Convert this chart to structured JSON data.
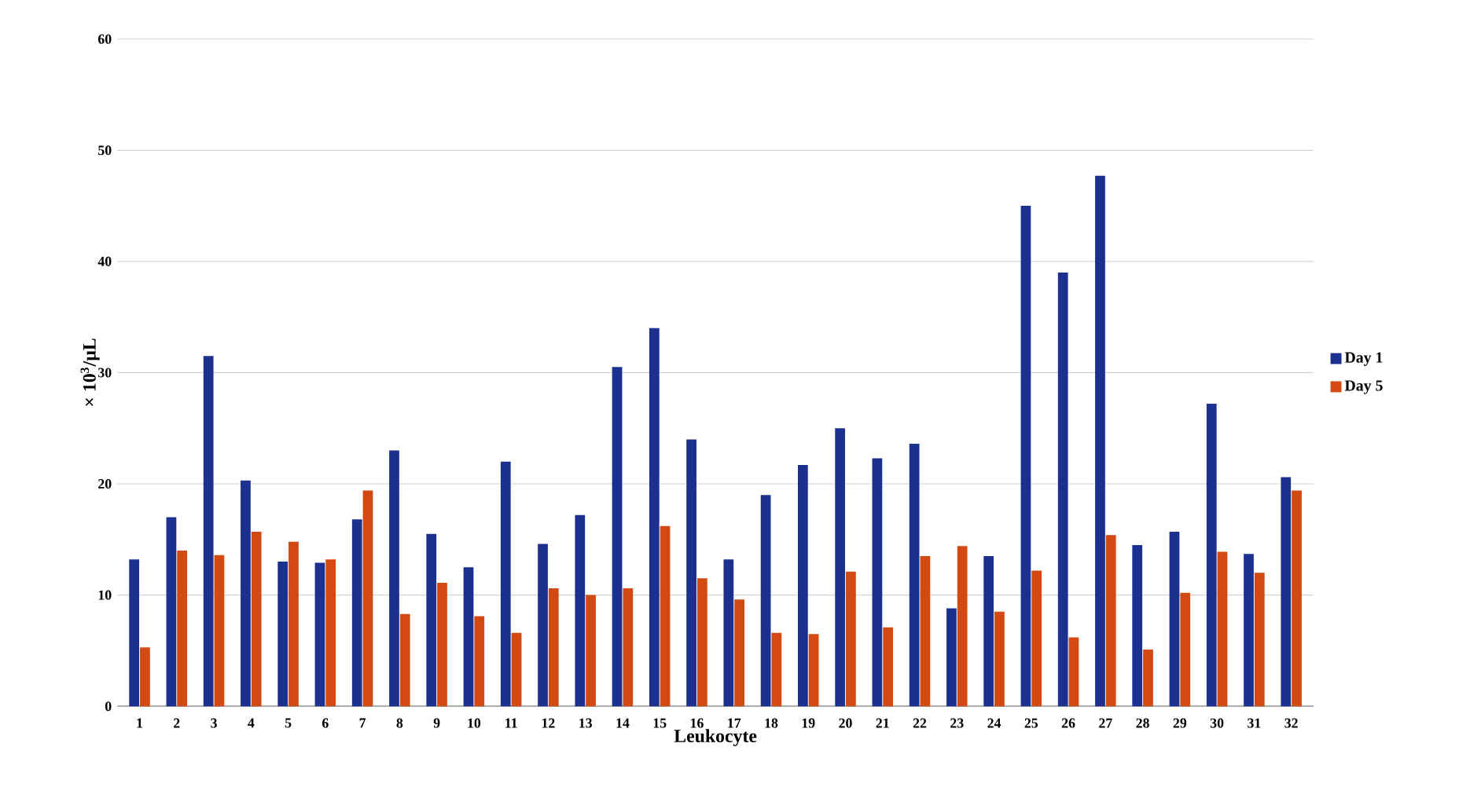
{
  "chart_data": {
    "type": "bar",
    "xlabel": "Leukocyte",
    "ylabel": "× 10$^{3}$/µL",
    "categories": [
      "1",
      "2",
      "3",
      "4",
      "5",
      "6",
      "7",
      "8",
      "9",
      "10",
      "11",
      "12",
      "13",
      "14",
      "15",
      "16",
      "17",
      "18",
      "19",
      "20",
      "21",
      "22",
      "23",
      "24",
      "25",
      "26",
      "27",
      "28",
      "29",
      "30",
      "31",
      "32"
    ],
    "series": [
      {
        "name": "Day 1",
        "color": "#1c318f",
        "values": [
          13.2,
          17,
          31.5,
          20.3,
          13,
          12.9,
          16.8,
          23,
          15.5,
          12.5,
          22,
          14.6,
          17.2,
          30.5,
          34,
          24,
          13.2,
          19,
          21.7,
          25,
          22.3,
          23.6,
          8.8,
          13.5,
          45,
          39,
          47.7,
          14.5,
          15.7,
          27.2,
          13.7,
          20.6
        ]
      },
      {
        "name": "Day 5",
        "color": "#d24a12",
        "values": [
          5.3,
          14,
          13.6,
          15.7,
          14.8,
          13.2,
          19.4,
          8.3,
          11.1,
          8.1,
          6.6,
          10.6,
          10,
          10.6,
          16.2,
          11.5,
          9.6,
          6.6,
          6.5,
          12.1,
          7.1,
          13.5,
          14.4,
          8.5,
          12.2,
          6.2,
          15.4,
          5.1,
          10.2,
          13.9,
          12,
          19.4
        ]
      }
    ],
    "ylim": [
      0,
      60
    ],
    "yticks": [
      0,
      10,
      20,
      30,
      40,
      50,
      60
    ],
    "grid": "y",
    "legend": "right"
  }
}
